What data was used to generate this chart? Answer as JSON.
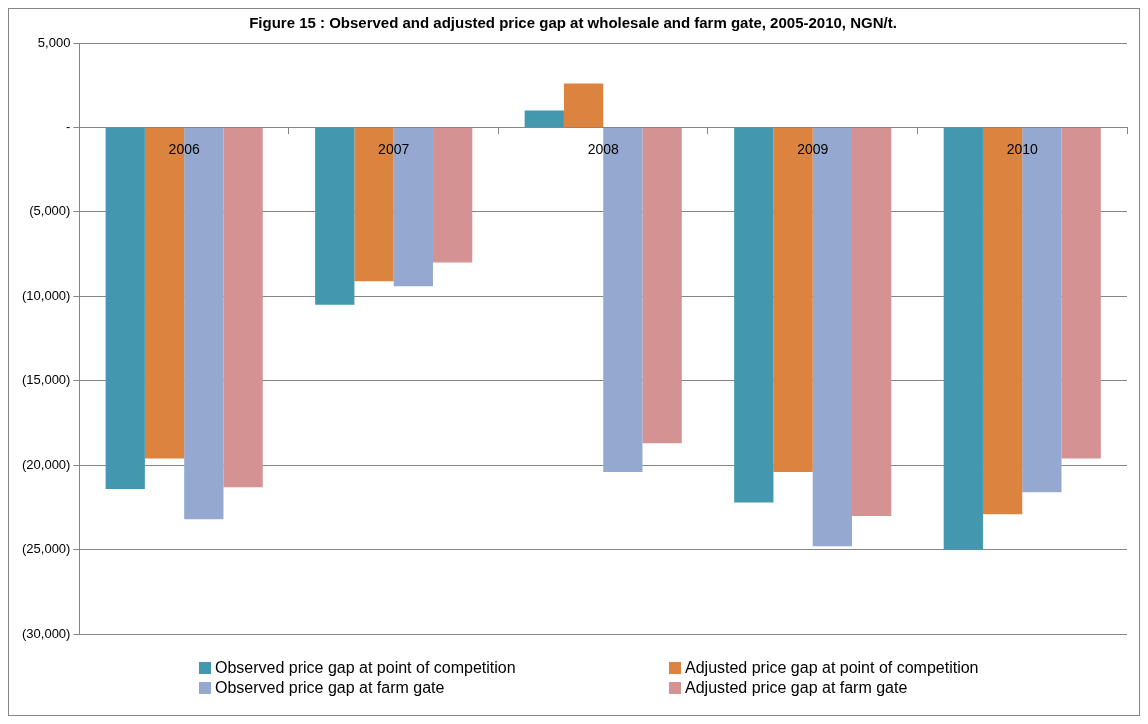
{
  "chart_data": {
    "type": "bar",
    "title": "Figure 15 : Observed and adjusted price gap at wholesale and farm gate, 2005-2010, NGN/t.",
    "categories": [
      "2006",
      "2007",
      "2008",
      "2009",
      "2010"
    ],
    "series": [
      {
        "name": "Observed price gap at point of competition",
        "color": "#4398b0",
        "values": [
          -21400,
          -10500,
          1000,
          -22200,
          -25000
        ]
      },
      {
        "name": "Adjusted price gap at point of competition",
        "color": "#dc843f",
        "values": [
          -19600,
          -9100,
          2600,
          -20400,
          -22900
        ]
      },
      {
        "name": "Observed price gap at farm gate",
        "color": "#95a9d0",
        "values": [
          -23200,
          -9400,
          -20400,
          -24800,
          -21600
        ]
      },
      {
        "name": "Adjusted price gap at farm gate",
        "color": "#d49292",
        "values": [
          -21300,
          -8000,
          -18700,
          -23000,
          -19600
        ]
      }
    ],
    "ylim": [
      -30000,
      5000
    ],
    "yticks": [
      {
        "value": -30000,
        "label": "(30,000)"
      },
      {
        "value": -25000,
        "label": "(25,000)"
      },
      {
        "value": -20000,
        "label": "(20,000)"
      },
      {
        "value": -15000,
        "label": "(15,000)"
      },
      {
        "value": -10000,
        "label": "(10,000)"
      },
      {
        "value": -5000,
        "label": "(5,000)"
      },
      {
        "value": 0,
        "label": "-"
      },
      {
        "value": 5000,
        "label": "5,000"
      }
    ],
    "grid": "y",
    "legend": "bottom"
  }
}
